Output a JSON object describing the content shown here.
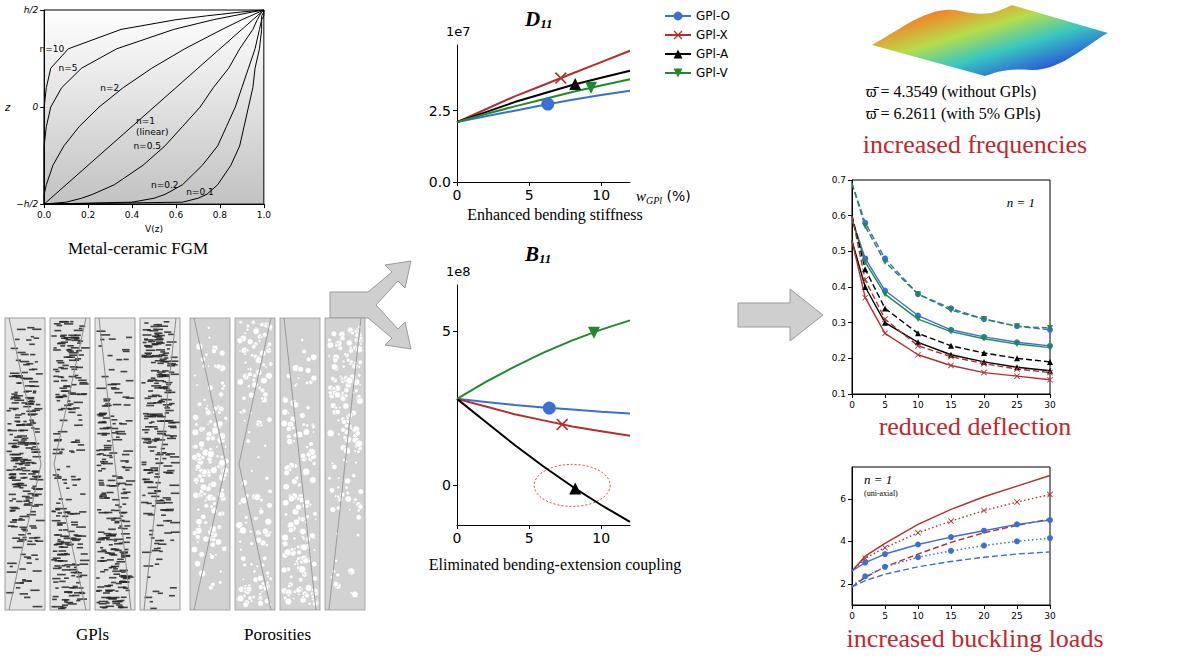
{
  "chart_data": [
    {
      "type": "line",
      "caption": "Metal-ceramic FGM",
      "x_label": "V(z)",
      "y_label": "z",
      "xlim": [
        0,
        1
      ],
      "xticks": [
        {
          "value": 0,
          "label": "0.0"
        },
        0.2,
        0.4,
        0.6,
        0.8,
        {
          "value": 1,
          "label": "1.0"
        }
      ],
      "ylim": [
        -0.5,
        0.5
      ],
      "yticks": [
        {
          "value": -0.5,
          "label": "−h/2"
        },
        0,
        {
          "value": 0.5,
          "label": "h/2"
        }
      ],
      "grid": false,
      "y": [
        -0.5,
        -0.49,
        -0.47,
        -0.45,
        -0.4,
        -0.3,
        -0.2,
        -0.1,
        0,
        0.1,
        0.2,
        0.3,
        0.4,
        0.45,
        0.47,
        0.49,
        0.5
      ],
      "series": [
        {
          "name": "n=10",
          "color": "#000000",
          "x": [
            0,
            0,
            0,
            0,
            0,
            0,
            0,
            0,
            0,
            0.01,
            0.03,
            0.11,
            0.35,
            0.6,
            0.74,
            0.9,
            1
          ]
        },
        {
          "name": "n=5",
          "color": "#000000",
          "x": [
            0,
            0,
            0,
            0,
            0,
            0,
            0,
            0.01,
            0.03,
            0.08,
            0.17,
            0.33,
            0.59,
            0.77,
            0.86,
            0.95,
            1
          ]
        },
        {
          "name": "n=2",
          "color": "#000000",
          "x": [
            0,
            0,
            0,
            0,
            0.01,
            0.04,
            0.09,
            0.16,
            0.25,
            0.36,
            0.49,
            0.64,
            0.81,
            0.9,
            0.94,
            0.98,
            1
          ]
        },
        {
          "name": "n=1 (linear)",
          "color": "#000000",
          "x": [
            0,
            0.01,
            0.03,
            0.05,
            0.1,
            0.2,
            0.3,
            0.4,
            0.5,
            0.6,
            0.7,
            0.8,
            0.9,
            0.95,
            0.97,
            0.99,
            1
          ]
        },
        {
          "name": "n=0.5",
          "color": "#000000",
          "x": [
            0,
            0.1,
            0.17,
            0.22,
            0.32,
            0.45,
            0.55,
            0.63,
            0.71,
            0.77,
            0.84,
            0.89,
            0.95,
            0.97,
            0.98,
            0.99,
            1
          ]
        },
        {
          "name": "n=0.2",
          "color": "#000000",
          "x": [
            0,
            0.4,
            0.5,
            0.55,
            0.63,
            0.72,
            0.79,
            0.83,
            0.87,
            0.9,
            0.93,
            0.96,
            0.98,
            0.99,
            0.99,
            1,
            1
          ]
        },
        {
          "name": "n=0.1",
          "color": "#000000",
          "x": [
            0,
            0.63,
            0.7,
            0.74,
            0.79,
            0.85,
            0.89,
            0.91,
            0.93,
            0.95,
            0.96,
            0.98,
            0.99,
            0.99,
            1,
            1,
            1
          ]
        }
      ]
    },
    {
      "type": "line",
      "title": "D11",
      "y_scale_label": "1e7",
      "caption": "Enhanced bending stiffness",
      "x_label": "wGPl (%)",
      "xlim": [
        0,
        12
      ],
      "xticks": [
        0,
        5,
        10
      ],
      "ylim": [
        0,
        4.8
      ],
      "yticks": [
        {
          "value": 0,
          "label": "0.0"
        },
        2.5
      ],
      "grid": false,
      "legend": "right",
      "x": [
        0,
        2,
        4,
        6,
        8,
        10,
        12
      ],
      "series": [
        {
          "name": "GPl-O",
          "color": "#3b6fd4",
          "marker": "circle",
          "line_style": "solid",
          "values": [
            2.1,
            2.3,
            2.5,
            2.7,
            2.88,
            3.05,
            3.2
          ],
          "marker_point": [
            6.3,
            2.73
          ]
        },
        {
          "name": "GPl-X",
          "color": "#b03030",
          "marker": "cross",
          "line_style": "solid",
          "values": [
            2.1,
            2.55,
            3.0,
            3.4,
            3.8,
            4.2,
            4.6
          ],
          "marker_point": [
            7.2,
            3.64
          ]
        },
        {
          "name": "GPl-A",
          "color": "#000000",
          "marker": "triangle",
          "line_style": "solid",
          "values": [
            2.1,
            2.45,
            2.8,
            3.1,
            3.4,
            3.65,
            3.9
          ],
          "marker_point": [
            8.2,
            3.43
          ]
        },
        {
          "name": "GPl-V",
          "color": "#1f8a2a",
          "marker": "triangle_down",
          "line_style": "solid",
          "values": [
            2.1,
            2.38,
            2.65,
            2.9,
            3.15,
            3.38,
            3.6
          ],
          "marker_point": [
            9.3,
            3.3
          ]
        }
      ]
    },
    {
      "type": "line",
      "title": "B11",
      "y_scale_label": "1e8",
      "caption": "Eliminated bending-extension coupling",
      "xlim": [
        0,
        12
      ],
      "xticks": [
        0,
        5,
        10
      ],
      "ylim": [
        -1.3,
        6.5
      ],
      "yticks": [
        0,
        5
      ],
      "grid": false,
      "x": [
        0,
        2,
        4,
        6,
        8,
        10,
        12
      ],
      "series": [
        {
          "color": "#3b6fd4",
          "marker": "circle",
          "line_style": "solid",
          "values": [
            2.8,
            2.7,
            2.6,
            2.52,
            2.45,
            2.38,
            2.32
          ],
          "marker_point": [
            6.4,
            2.5
          ]
        },
        {
          "color": "#b03030",
          "marker": "cross",
          "line_style": "solid",
          "values": [
            2.8,
            2.55,
            2.3,
            2.1,
            1.9,
            1.75,
            1.6
          ],
          "marker_point": [
            7.3,
            1.97
          ]
        },
        {
          "color": "#000000",
          "marker": "triangle",
          "line_style": "solid",
          "values": [
            2.8,
            2.05,
            1.3,
            0.6,
            -0.05,
            -0.65,
            -1.2
          ],
          "marker_point": [
            8.2,
            -0.11
          ]
        },
        {
          "color": "#1f8a2a",
          "marker": "triangle_down",
          "line_style": "solid",
          "values": [
            2.8,
            3.35,
            3.85,
            4.3,
            4.7,
            5.05,
            5.35
          ],
          "marker_point": [
            9.5,
            4.95
          ]
        }
      ]
    },
    {
      "type": "line",
      "caption": "reduced deflection",
      "annotations": [
        "n = 1"
      ],
      "xlim": [
        0,
        30
      ],
      "xticks": [
        0,
        5,
        10,
        15,
        20,
        25,
        30
      ],
      "ylim": [
        0.1,
        0.7
      ],
      "yticks": [
        0.1,
        0.2,
        0.3,
        0.4,
        0.5,
        0.6,
        0.7
      ],
      "grid": false,
      "x": [
        0,
        2,
        5,
        10,
        15,
        20,
        25,
        30
      ],
      "series": [
        {
          "color": "#3b6fd4",
          "marker": "circle",
          "line_style": "dashed",
          "values": [
            0.69,
            0.58,
            0.48,
            0.38,
            0.34,
            0.31,
            0.29,
            0.28
          ]
        },
        {
          "color": "#1f8a4c",
          "marker": "triangle_down",
          "line_style": "dashed",
          "values": [
            0.69,
            0.57,
            0.47,
            0.38,
            0.335,
            0.31,
            0.29,
            0.285
          ]
        },
        {
          "color": "#3b6fd4",
          "marker": "circle",
          "line_style": "solid",
          "values": [
            0.59,
            0.48,
            0.39,
            0.32,
            0.28,
            0.26,
            0.245,
            0.235
          ]
        },
        {
          "color": "#1f8a4c",
          "marker": "triangle_down",
          "line_style": "solid",
          "values": [
            0.59,
            0.47,
            0.38,
            0.31,
            0.275,
            0.255,
            0.24,
            0.23
          ]
        },
        {
          "color": "#000000",
          "marker": "triangle",
          "line_style": "dashed",
          "values": [
            0.6,
            0.45,
            0.34,
            0.27,
            0.235,
            0.215,
            0.2,
            0.19
          ]
        },
        {
          "color": "#000000",
          "marker": "triangle",
          "line_style": "solid",
          "values": [
            0.53,
            0.4,
            0.3,
            0.245,
            0.21,
            0.19,
            0.175,
            0.165
          ]
        },
        {
          "color": "#b03030",
          "marker": "cross",
          "line_style": "dashed",
          "values": [
            0.6,
            0.42,
            0.31,
            0.235,
            0.205,
            0.185,
            0.17,
            0.16
          ]
        },
        {
          "color": "#b03030",
          "marker": "cross",
          "line_style": "solid",
          "values": [
            0.53,
            0.37,
            0.27,
            0.21,
            0.18,
            0.16,
            0.15,
            0.14
          ]
        }
      ]
    },
    {
      "type": "line",
      "caption": "increased buckling loads",
      "annotations": [
        "n = 1",
        "(uni-axial)"
      ],
      "xlim": [
        0,
        30
      ],
      "xticks": [
        0,
        5,
        10,
        15,
        20,
        25,
        30
      ],
      "ylim": [
        1,
        7.5
      ],
      "yticks": [
        2,
        4,
        6
      ],
      "grid": false,
      "x": [
        0,
        2,
        5,
        10,
        15,
        20,
        25,
        30
      ],
      "series": [
        {
          "color": "#b03030",
          "marker": "none",
          "line_style": "solid",
          "values": [
            2.6,
            3.3,
            3.9,
            4.8,
            5.5,
            6.1,
            6.6,
            7.1
          ]
        },
        {
          "color": "#b03030",
          "marker": "cross",
          "line_style": "dotted",
          "values": [
            2.6,
            3.2,
            3.7,
            4.4,
            4.95,
            5.45,
            5.85,
            6.2
          ]
        },
        {
          "color": "#b03030",
          "marker": "none",
          "line_style": "dashed",
          "values": [
            1.85,
            2.3,
            2.8,
            3.4,
            3.95,
            4.4,
            4.75,
            5.05
          ]
        },
        {
          "color": "#3b6fd4",
          "marker": "circle",
          "line_style": "solid",
          "values": [
            2.6,
            3.0,
            3.4,
            3.85,
            4.2,
            4.5,
            4.8,
            5.0
          ]
        },
        {
          "color": "#3b6fd4",
          "marker": "circle",
          "line_style": "dotted",
          "values": [
            1.9,
            2.35,
            2.8,
            3.25,
            3.55,
            3.8,
            4.0,
            4.15
          ]
        },
        {
          "color": "#3b6fd4",
          "marker": "none",
          "line_style": "dashed",
          "values": [
            1.85,
            2.15,
            2.45,
            2.8,
            3.05,
            3.25,
            3.4,
            3.5
          ]
        }
      ]
    }
  ],
  "illustrations": {
    "gpl_caption": "GPls",
    "porosity_caption": "Porosities"
  },
  "frequencies": {
    "lines": [
      "ϖ̄ = 4.3549 (without GPls)",
      "ϖ̄ = 6.2611 (with 5% GPls)"
    ],
    "caption": "increased frequencies"
  }
}
